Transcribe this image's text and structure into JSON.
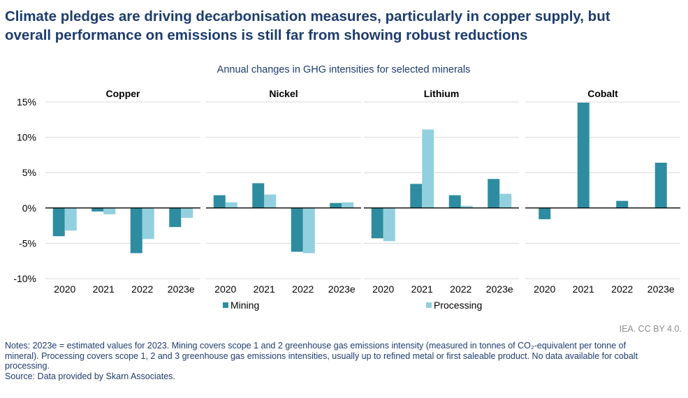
{
  "headline": {
    "line1": "Climate pledges are driving decarbonisation measures, particularly in copper supply, but",
    "line2": "overall performance on emissions is still far from showing robust reductions"
  },
  "credit": "IEA. CC BY 4.0.",
  "notes": {
    "line1": "Notes: 2023e = estimated values for 2023. Mining covers scope 1 and 2 greenhouse gas emissions intensity (measured in tonnes of CO₂-equivalent per tonne of",
    "line2": "mineral). Processing covers scope 1, 2 and 3 greenhouse gas emissions intensities, usually up to refined metal or first saleable product. No data available for cobalt",
    "line3": "processing.",
    "source": "Source: Data provided by Skarn Associates."
  },
  "colors": {
    "mining": "#2e8ca0",
    "processing": "#92d0df",
    "grid": "#d9d9d9",
    "axis": "#000000"
  },
  "chart_data": {
    "type": "bar",
    "title": "Annual changes in GHG intensities for selected minerals",
    "ylim": [
      -10,
      15
    ],
    "yticks": [
      -10,
      -5,
      0,
      5,
      10,
      15
    ],
    "ytick_labels": [
      "-10%",
      "-5%",
      "0%",
      "5%",
      "10%",
      "15%"
    ],
    "grid": true,
    "legend_position": "bottom-center",
    "legend": [
      "Mining",
      "Processing"
    ],
    "panels": [
      {
        "name": "Copper",
        "categories": [
          "2020",
          "2021",
          "2022",
          "2023e"
        ],
        "series": [
          {
            "name": "Mining",
            "values": [
              -4.0,
              -0.5,
              -6.4,
              -2.7
            ]
          },
          {
            "name": "Processing",
            "values": [
              -3.2,
              -0.9,
              -4.4,
              -1.4
            ]
          }
        ]
      },
      {
        "name": "Nickel",
        "categories": [
          "2020",
          "2021",
          "2022",
          "2023e"
        ],
        "series": [
          {
            "name": "Mining",
            "values": [
              1.8,
              3.5,
              -6.2,
              0.7
            ]
          },
          {
            "name": "Processing",
            "values": [
              0.8,
              1.9,
              -6.4,
              0.8
            ]
          }
        ]
      },
      {
        "name": "Lithium",
        "categories": [
          "2020",
          "2021",
          "2022",
          "2023e"
        ],
        "series": [
          {
            "name": "Mining",
            "values": [
              -4.3,
              3.4,
              1.8,
              4.1
            ]
          },
          {
            "name": "Processing",
            "values": [
              -4.7,
              11.1,
              0.3,
              2.0
            ]
          }
        ]
      },
      {
        "name": "Cobalt",
        "categories": [
          "2020",
          "2021",
          "2022",
          "2023e"
        ],
        "series": [
          {
            "name": "Mining",
            "values": [
              -1.6,
              14.9,
              1.0,
              6.4
            ]
          }
        ]
      }
    ]
  }
}
